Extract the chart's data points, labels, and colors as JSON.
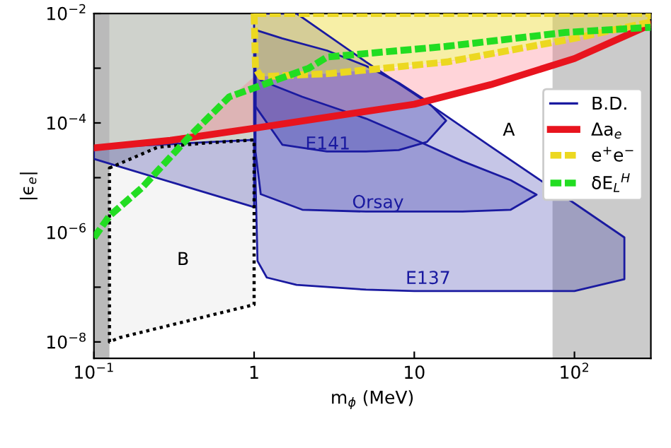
{
  "chart_data": {
    "type": "line",
    "xlabel": "m$_{ϕ}$ (MeV)",
    "ylabel": "|ϵ$_{e}$|",
    "log": "xy",
    "legend": "right",
    "xlim": [
      0.1,
      300
    ],
    "ylim": [
      5e-09,
      0.01
    ],
    "xticks": [
      {
        "value": 0.1,
        "label": "10$^{−1}$"
      },
      1,
      10,
      {
        "value": 100,
        "label": "10$^{2}$"
      }
    ],
    "yticks": [
      {
        "value": 1e-08,
        "label": "10$^{−8}$"
      },
      {
        "value": 1e-07,
        "label": null
      },
      {
        "value": 1e-06,
        "label": "10$^{−6}$"
      },
      {
        "value": 1e-05,
        "label": null
      },
      {
        "value": 0.0001,
        "label": "10$^{−4}$"
      },
      {
        "value": 0.001,
        "label": null
      },
      {
        "value": 0.01,
        "label": "10$^{−2}$"
      }
    ],
    "bands": [
      {
        "axis": "x",
        "from": 0.1,
        "to": 0.125,
        "color": "#8c8c8c"
      },
      {
        "axis": "x",
        "from": 73,
        "to": 300,
        "color": "#a8a8a8"
      }
    ],
    "series": [
      {
        "type": "area",
        "color": "#5f6a55",
        "x": [
          0.125,
          0.25,
          0.5,
          1,
          1,
          0.125
        ],
        "values": [
          1.5e-05,
          3.6e-05,
          4.3e-05,
          4.9e-05,
          0.01,
          0.01
        ]
      },
      {
        "type": "area",
        "color": "#ff6f80",
        "x": [
          0.35,
          1,
          3,
          10,
          30,
          100,
          300,
          300,
          100,
          30,
          10,
          3,
          1
        ],
        "values": [
          4.9e-05,
          8e-05,
          0.00013,
          0.00022,
          0.0005,
          0.0015,
          0.0063,
          0.007,
          0.0035,
          0.0018,
          0.0011,
          0.0008,
          0.0007
        ]
      },
      {
        "type": "area",
        "color": "#1a1aa0",
        "line_style": "solid",
        "x": [
          0.1,
          1,
          1,
          0.1
        ],
        "values": [
          2.2e-05,
          2.9e-06,
          4.9e-05,
          3.5e-05
        ]
      },
      {
        "type": "area",
        "color": "#1a1aa0",
        "line_style": "solid",
        "name": "B.D.",
        "x": [
          1,
          1.84,
          5,
          10,
          30,
          100,
          205,
          205,
          100,
          30,
          10,
          5,
          1.84,
          1.2,
          1.05,
          1
        ],
        "values": [
          0.01,
          0.01,
          0.0013,
          0.00034,
          3.7e-05,
          3.4e-06,
          8.1e-07,
          1.4e-07,
          8.5e-08,
          8.5e-08,
          8.5e-08,
          9e-08,
          1.1e-07,
          1.5e-07,
          3e-07,
          0.0001
        ]
      },
      {
        "type": "area",
        "color": "#1a1aa0",
        "line_style": "solid",
        "x": [
          1.02,
          1.1,
          2,
          5,
          10,
          20,
          40,
          58,
          40,
          20,
          10,
          5,
          2,
          1.1,
          1.02
        ],
        "values": [
          0.00087,
          0.0006,
          0.0003,
          0.00012,
          5e-05,
          2e-05,
          9e-06,
          4.9e-06,
          2.6e-06,
          2.4e-06,
          2.4e-06,
          2.4e-06,
          2.6e-06,
          5e-06,
          3e-05
        ]
      },
      {
        "type": "area",
        "color": "#1a1aa0",
        "line_style": "solid",
        "x": [
          1.02,
          1.5,
          2.85,
          5,
          8,
          12,
          15.8,
          12,
          8,
          5,
          2.85,
          1.5,
          1.02
        ],
        "values": [
          0.005,
          0.0035,
          0.0021,
          0.0011,
          0.00054,
          0.00025,
          0.00011,
          4.5e-05,
          3.2e-05,
          3e-05,
          3e-05,
          4e-05,
          0.0002
        ]
      },
      {
        "type": "area",
        "color": "#000000",
        "line_style": "dotted",
        "x": [
          0.125,
          0.25,
          0.5,
          1,
          1,
          0.145,
          0.125
        ],
        "values": [
          1.5e-05,
          3.6e-05,
          4.3e-05,
          4.9e-05,
          4.8e-08,
          1.2e-08,
          1e-08
        ]
      },
      {
        "color": "#e8141e",
        "name": "Δa$_{e}$",
        "line_style": "solid",
        "x": [
          0.1,
          0.3,
          1,
          3,
          10,
          30,
          100,
          300
        ],
        "values": [
          3.5e-05,
          4.8e-05,
          8e-05,
          0.00013,
          0.00022,
          0.0005,
          0.0015,
          0.0063
        ]
      },
      {
        "type": "area",
        "color": "#ecd820",
        "name": "e$^{+}$e$^{−}$",
        "line_style": "dashed",
        "x": [
          1,
          1.02,
          1.1,
          3,
          16,
          100,
          300,
          300
        ],
        "values": [
          0.01,
          0.001,
          0.0007,
          0.0008,
          0.0013,
          0.0035,
          0.007,
          0.01
        ]
      },
      {
        "color": "#22dd22",
        "name": "δE$_{L}$$^{H}$",
        "line_style": "dashed",
        "x": [
          0.1,
          0.125,
          0.2,
          0.4,
          0.7,
          2.2,
          2.85,
          15.8,
          88,
          300
        ],
        "values": [
          8e-07,
          2e-06,
          6.6e-06,
          5.9e-05,
          0.0003,
          0.001,
          0.0016,
          0.0025,
          0.0045,
          0.0056
        ]
      }
    ],
    "annotations": [
      "A",
      "B",
      "E141",
      "Orsay",
      "E137"
    ]
  }
}
